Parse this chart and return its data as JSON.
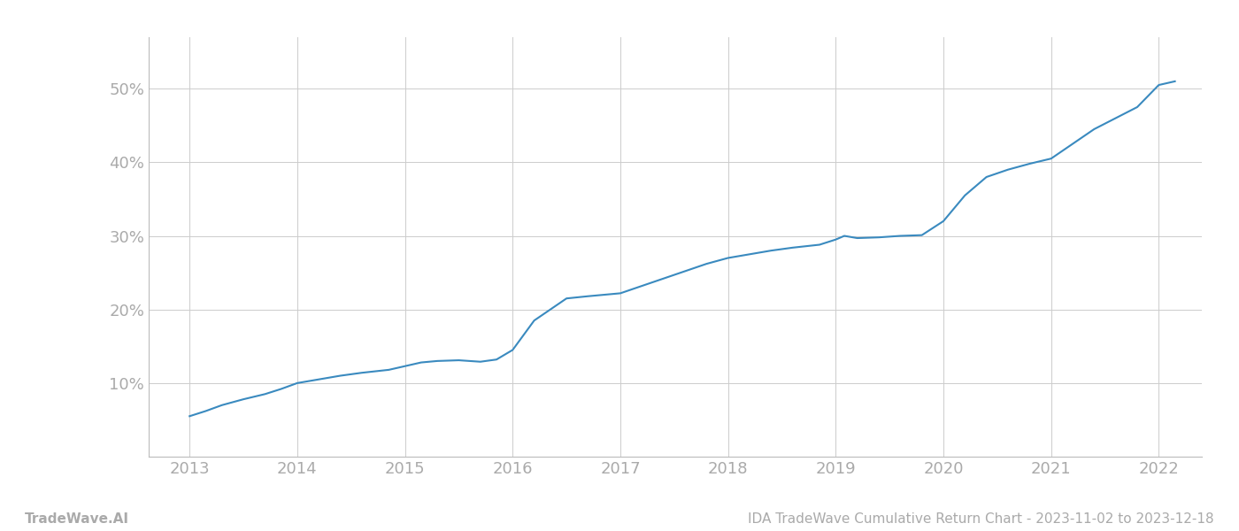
{
  "x_values": [
    2013.0,
    2013.15,
    2013.3,
    2013.5,
    2013.7,
    2013.85,
    2014.0,
    2014.2,
    2014.4,
    2014.6,
    2014.85,
    2015.0,
    2015.15,
    2015.3,
    2015.5,
    2015.7,
    2015.85,
    2016.0,
    2016.1,
    2016.2,
    2016.35,
    2016.5,
    2016.7,
    2016.85,
    2017.0,
    2017.2,
    2017.4,
    2017.6,
    2017.8,
    2018.0,
    2018.2,
    2018.4,
    2018.6,
    2018.85,
    2019.0,
    2019.08,
    2019.2,
    2019.4,
    2019.6,
    2019.8,
    2020.0,
    2020.2,
    2020.4,
    2020.6,
    2020.8,
    2021.0,
    2021.2,
    2021.4,
    2021.6,
    2021.8,
    2022.0,
    2022.15
  ],
  "y_values": [
    5.5,
    6.2,
    7.0,
    7.8,
    8.5,
    9.2,
    10.0,
    10.5,
    11.0,
    11.4,
    11.8,
    12.3,
    12.8,
    13.0,
    13.1,
    12.9,
    13.2,
    14.5,
    16.5,
    18.5,
    20.0,
    21.5,
    21.8,
    22.0,
    22.2,
    23.2,
    24.2,
    25.2,
    26.2,
    27.0,
    27.5,
    28.0,
    28.4,
    28.8,
    29.5,
    30.0,
    29.7,
    29.8,
    30.0,
    30.1,
    32.0,
    35.5,
    38.0,
    39.0,
    39.8,
    40.5,
    42.5,
    44.5,
    46.0,
    47.5,
    50.5,
    51.0
  ],
  "line_color": "#3a8abf",
  "line_width": 1.5,
  "yticks": [
    10,
    20,
    30,
    40,
    50
  ],
  "xticks": [
    2013,
    2014,
    2015,
    2016,
    2017,
    2018,
    2019,
    2020,
    2021,
    2022
  ],
  "ylim": [
    0,
    57
  ],
  "xlim": [
    2012.62,
    2022.4
  ],
  "background_color": "#ffffff",
  "grid_color": "#cccccc",
  "footer_left": "TradeWave.AI",
  "footer_right": "IDA TradeWave Cumulative Return Chart - 2023-11-02 to 2023-12-18",
  "footer_fontsize": 11,
  "tick_label_color": "#aaaaaa",
  "tick_fontsize": 13
}
